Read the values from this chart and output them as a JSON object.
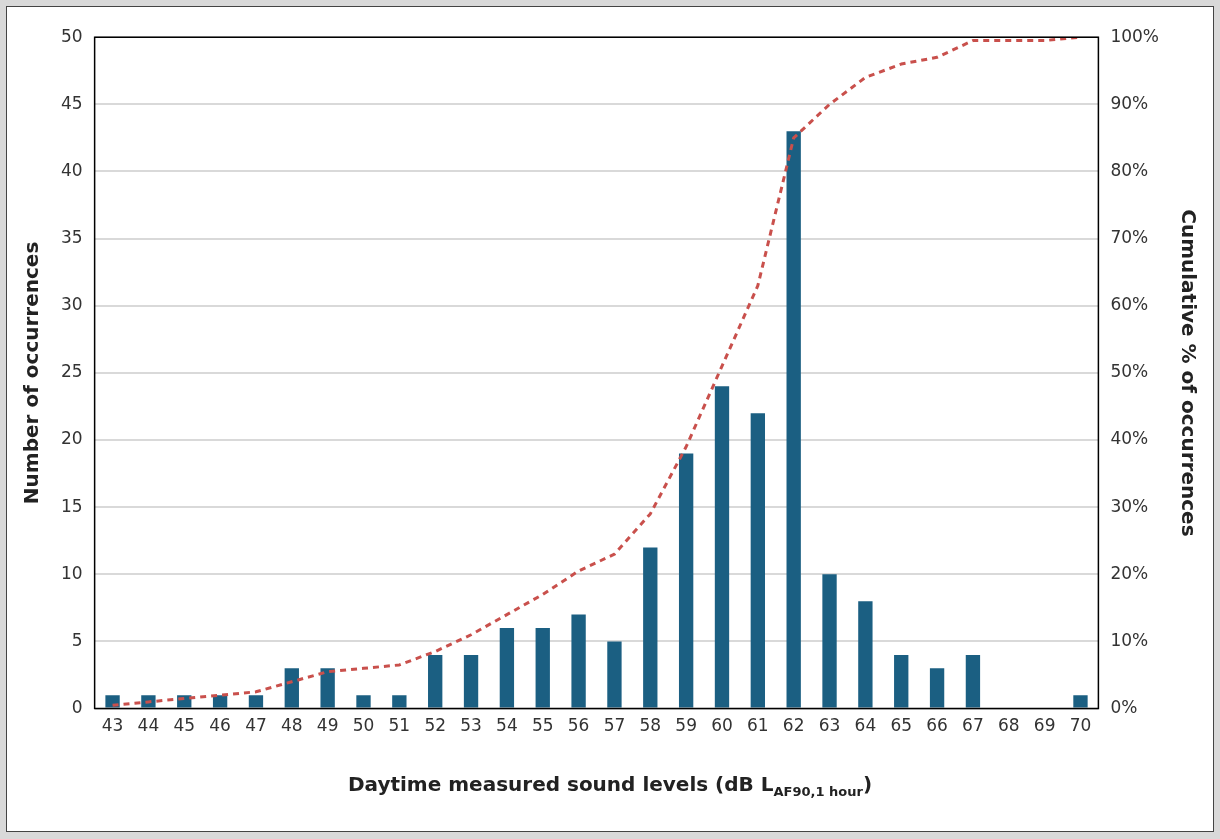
{
  "chart_data": {
    "type": "bar",
    "xlabel": "Daytime measured sound levels (dB L$_{AF90,1 hour}$)",
    "ylabel": "Number of occurrences",
    "y2label": "Cumulative % of occurrences",
    "categories": [
      "43",
      "44",
      "45",
      "46",
      "47",
      "48",
      "49",
      "50",
      "51",
      "52",
      "53",
      "54",
      "55",
      "56",
      "57",
      "58",
      "59",
      "60",
      "61",
      "62",
      "63",
      "64",
      "65",
      "66",
      "67",
      "68",
      "69",
      "70"
    ],
    "series": [
      {
        "color": "#1b5f82",
        "values": [
          1,
          1,
          1,
          1,
          1,
          3,
          3,
          1,
          1,
          4,
          4,
          6,
          6,
          7,
          5,
          12,
          19,
          24,
          22,
          43,
          10,
          8,
          4,
          3,
          4,
          0,
          0,
          1
        ]
      },
      {
        "type": "line",
        "axis": "y2",
        "color": "#c9504c",
        "line_style": "dashed",
        "marker": "none",
        "values": [
          0.5,
          1,
          1.5,
          2,
          2.5,
          4,
          5.5,
          6,
          6.5,
          8.5,
          11,
          14,
          17,
          20.5,
          23,
          29,
          39,
          51,
          63,
          85,
          90,
          94,
          96,
          97,
          99.5,
          99.5,
          99.5,
          100
        ]
      }
    ],
    "ylim": [
      0,
      50
    ],
    "yticks": [
      0,
      5,
      10,
      15,
      20,
      25,
      30,
      35,
      40,
      45,
      50
    ],
    "y2lim": [
      0,
      100
    ],
    "y2ticks": [
      {
        "value": 0,
        "label": "0%"
      },
      {
        "value": 10,
        "label": "10%"
      },
      {
        "value": 20,
        "label": "20%"
      },
      {
        "value": 30,
        "label": "30%"
      },
      {
        "value": 40,
        "label": "40%"
      },
      {
        "value": 50,
        "label": "50%"
      },
      {
        "value": 60,
        "label": "60%"
      },
      {
        "value": 70,
        "label": "70%"
      },
      {
        "value": 80,
        "label": "80%"
      },
      {
        "value": 90,
        "label": "90%"
      },
      {
        "value": 100,
        "label": "100%"
      }
    ],
    "grid": "y",
    "legend": false
  }
}
